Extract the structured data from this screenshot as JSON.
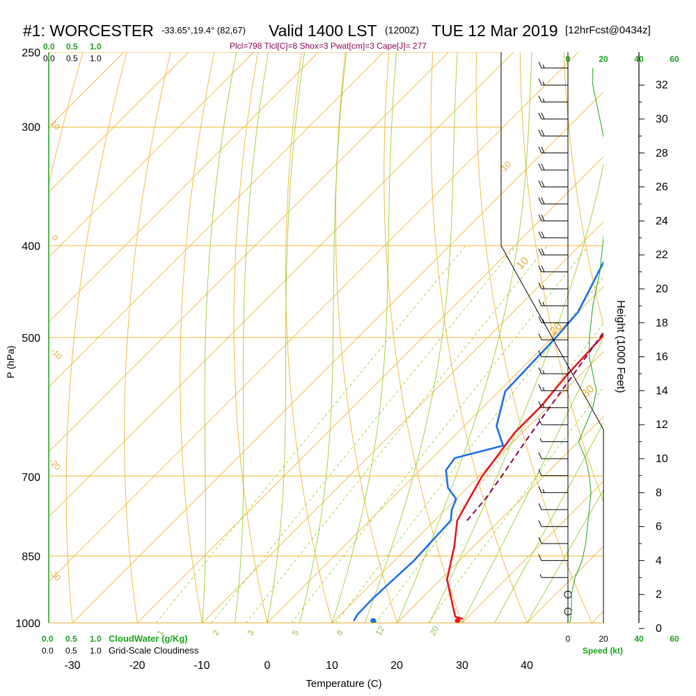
{
  "title": {
    "station": "#1: WORCESTER",
    "coords": "-33.65°,19.4° (82,67)",
    "valid": "Valid 1400 LST",
    "zulu": "(1200Z)",
    "date": "TUE 12 Mar 2019",
    "forecast": "[12hrFcst@0434z]"
  },
  "indices": "Plcl=798 Tlcl[C]=8 Shox=3 Pwat[cm]=3 Cape[J]= 277",
  "colors": {
    "temperature": "#e8141c",
    "dewpoint": "#1a6ee8",
    "parcel": "#880055",
    "isotherm_isobar": "#f0b430",
    "moist_adiabat": "#9acd32",
    "mixing_ratio": "#9acd32",
    "green_text": "#1aa01a"
  },
  "left_axis": {
    "label": "P (hPa)",
    "ticks": [
      "250",
      "300",
      "400",
      "500",
      "700",
      "850",
      "1000"
    ]
  },
  "bottom_axis": {
    "label": "Temperature (C)",
    "ticks": [
      "-30",
      "-20",
      "-10",
      "0",
      "10",
      "20",
      "30",
      "40"
    ]
  },
  "right_axis": {
    "label": "Height (1000 Feet)",
    "ticks": [
      "0",
      "2",
      "4",
      "6",
      "8",
      "10",
      "12",
      "14",
      "16",
      "18",
      "20",
      "22",
      "24",
      "26",
      "28",
      "30",
      "32"
    ]
  },
  "cloud_scale": {
    "top_green": [
      "0.0",
      "0.5",
      "1.0"
    ],
    "top_black": [
      "0.0",
      "0.5",
      "1.0"
    ],
    "bottom_green": [
      "0.0",
      "0.5",
      "1.0"
    ],
    "bottom_black": [
      "0.0",
      "0.5",
      "1.0"
    ],
    "cloudwater_label": "CloudWater (g/Kg)",
    "cloudiness_label": "Grid-Scale Cloudiness"
  },
  "speed_scale": {
    "top_green": [
      "0",
      "20",
      "40",
      "60"
    ],
    "bottom_black": [
      "0",
      "20"
    ],
    "bottom_green": [
      "40",
      "60"
    ],
    "label": "Speed (kt)"
  },
  "theta_labels": [
    "-10",
    "0",
    "10",
    "20",
    "30",
    "10",
    "0",
    "-10",
    "-20",
    "-30"
  ],
  "mixing_ratio_labels": [
    "1",
    "2",
    "3",
    "5",
    "8",
    "12",
    "20"
  ],
  "chart_data": {
    "type": "line",
    "chart_kind": "skew-T log-P sounding",
    "title": "#1: WORCESTER -33.65°,19.4° (82,67) Valid 1400 LST (1200Z) TUE 12 Mar 2019 [12hrFcst@0434z]",
    "xlabel": "Temperature (C)",
    "ylabel": "P (hPa)",
    "y2label": "Height (1000 Feet)",
    "xlim": [
      -30,
      40
    ],
    "ylim": [
      1000,
      250
    ],
    "y_scale": "log",
    "skew_deg_per_log_p": 45,
    "isobars": [
      250,
      300,
      400,
      500,
      700,
      850,
      1000
    ],
    "series": [
      {
        "name": "temperature",
        "x": [
          29.5,
          28.0,
          26.0,
          21.0,
          17.0,
          13.5,
          12.0,
          10.5,
          9.8,
          8.8,
          8.8,
          8.0,
          7.5,
          6.0,
          4.5,
          3.0,
          1.5,
          0.0,
          -1.0,
          -2.3
        ],
        "y": [
          990,
          985,
          960,
          900,
          830,
          780,
          740,
          700,
          670,
          630,
          590,
          550,
          500,
          450,
          400,
          360,
          330,
          310,
          290,
          270
        ]
      },
      {
        "name": "dewpoint",
        "x": [
          13.0,
          12.6,
          12.5,
          13.0,
          12.5,
          11.0,
          10.0,
          7.0,
          4.0,
          3.5,
          9.0,
          5.0,
          1.0,
          0.5,
          0.0,
          -3.5,
          -9.0,
          -14.0,
          -17.0,
          -17.5
        ],
        "y": [
          995,
          980,
          940,
          860,
          780,
          760,
          740,
          720,
          690,
          670,
          650,
          620,
          570,
          500,
          470,
          420,
          350,
          310,
          290,
          270
        ]
      },
      {
        "name": "parcel",
        "x": [
          15.0,
          14.5,
          13.5,
          12.0,
          10.5,
          9.0,
          6.5,
          4.0,
          1.5,
          -1.0
        ],
        "y": [
          780,
          740,
          700,
          650,
          600,
          550,
          480,
          420,
          360,
          310
        ]
      }
    ],
    "surface_points": [
      {
        "name": "surface temperature",
        "x": 29.0,
        "y": 995
      },
      {
        "name": "surface dewpoint",
        "x": 16.0,
        "y": 995
      }
    ],
    "wind_profile_kt": {
      "height_kft": [
        0.2,
        1,
        2,
        3,
        4,
        5,
        6,
        7,
        8,
        9,
        10,
        11,
        12,
        13,
        14,
        15,
        16,
        17,
        18,
        19,
        20,
        21,
        22,
        23,
        24,
        25,
        26,
        27,
        28,
        29,
        30,
        31,
        32,
        33
      ],
      "speed_kt": [
        1,
        2,
        2,
        4,
        8,
        10,
        11,
        12,
        13,
        12,
        10,
        6,
        10,
        14,
        16,
        14,
        12,
        12,
        13,
        14,
        16,
        18,
        19,
        20,
        21,
        22,
        22,
        22,
        21,
        20,
        18,
        16,
        14,
        14
      ]
    }
  }
}
